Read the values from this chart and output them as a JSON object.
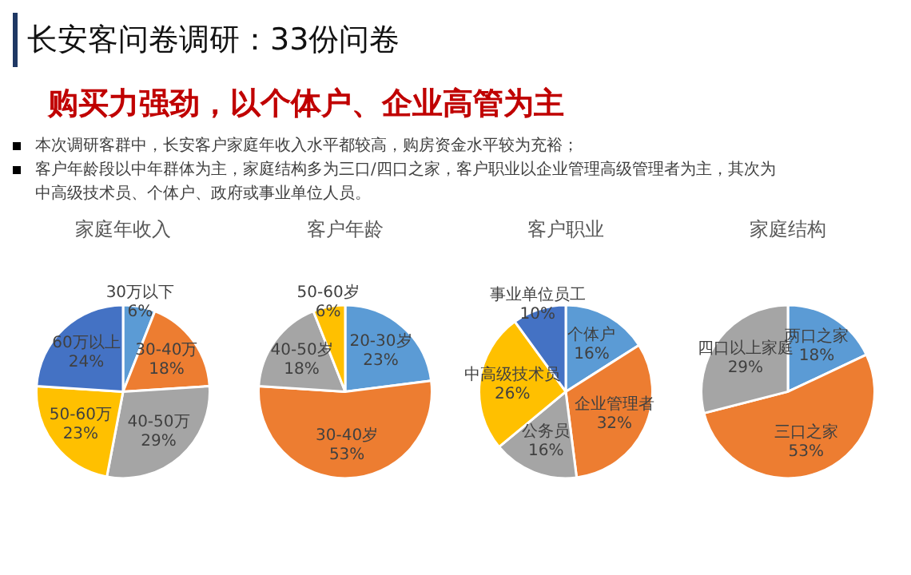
{
  "chart_data": [
    {
      "type": "other",
      "title": "长安客问卷调研：33份问卷",
      "subtitle": "购买力强劲，以个体户、企业高管为主",
      "annotations": [
        "本次调研客群中，长安客户家庭年收入水平都较高，购房资金水平较为充裕；",
        "客户年龄段以中年群体为主，家庭结构多为三口/四口之家，客户职业以企业管理高级管理者为主，其次为中高级技术员、个体户、政府或事业单位人员。"
      ]
    },
    {
      "type": "pie",
      "title": "家庭年收入",
      "categories": [
        "30万以下",
        "30-40万",
        "40-50万",
        "50-60万",
        "60万以上"
      ],
      "values": [
        6,
        18,
        29,
        23,
        24
      ],
      "value_labels": [
        "6%",
        "18%",
        "29%",
        "23%",
        "24%"
      ],
      "colors": [
        "#5b9bd5",
        "#ed7d31",
        "#a5a5a5",
        "#ffc000",
        "#4472c4"
      ],
      "legend": false
    },
    {
      "type": "pie",
      "title": "客户年龄",
      "categories": [
        "20-30岁",
        "30-40岁",
        "40-50岁",
        "50-60岁"
      ],
      "values": [
        23,
        53,
        18,
        6
      ],
      "value_labels": [
        "23%",
        "53%",
        "18%",
        "6%"
      ],
      "colors": [
        "#5b9bd5",
        "#ed7d31",
        "#a5a5a5",
        "#ffc000"
      ],
      "legend": false
    },
    {
      "type": "pie",
      "title": "客户职业",
      "categories": [
        "个体户",
        "企业管理者",
        "公务员",
        "中高级技术员",
        "事业单位员工"
      ],
      "values": [
        16,
        32,
        16,
        26,
        10
      ],
      "value_labels": [
        "16%",
        "32%",
        "16%",
        "26%",
        "10%"
      ],
      "colors": [
        "#5b9bd5",
        "#ed7d31",
        "#a5a5a5",
        "#ffc000",
        "#4472c4"
      ],
      "legend": false
    },
    {
      "type": "pie",
      "title": "家庭结构",
      "categories": [
        "两口之家",
        "三口之家",
        "四口以上家庭"
      ],
      "values": [
        18,
        53,
        29
      ],
      "value_labels": [
        "18%",
        "53%",
        "29%"
      ],
      "colors": [
        "#5b9bd5",
        "#ed7d31",
        "#a5a5a5"
      ],
      "legend": false
    }
  ]
}
